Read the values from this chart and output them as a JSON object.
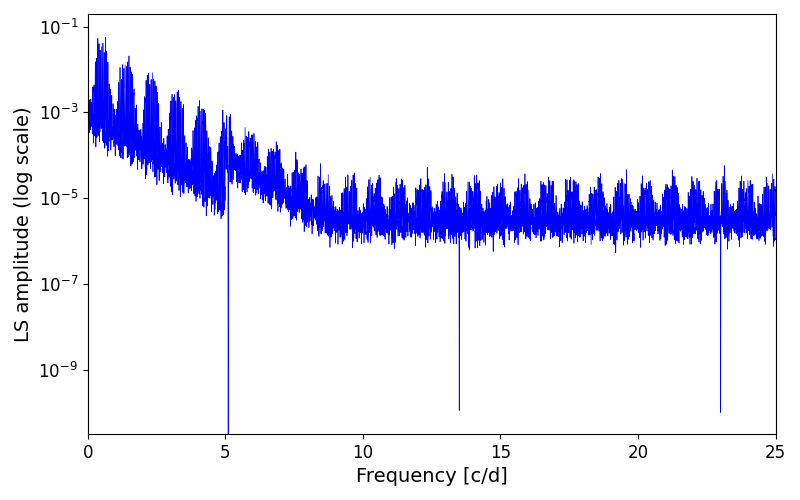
{
  "title": "",
  "xlabel": "Frequency [c/d]",
  "ylabel": "LS amplitude (log scale)",
  "line_color": "#0000ff",
  "line_width": 0.5,
  "xlim": [
    0,
    25
  ],
  "ylim_log_min": -10.5,
  "ylim_log_max": -0.7,
  "figsize": [
    8.0,
    5.0
  ],
  "dpi": 100,
  "freq_max": 25,
  "n_points": 8000,
  "background_color": "#ffffff",
  "tick_label_size": 12,
  "axis_label_size": 14
}
